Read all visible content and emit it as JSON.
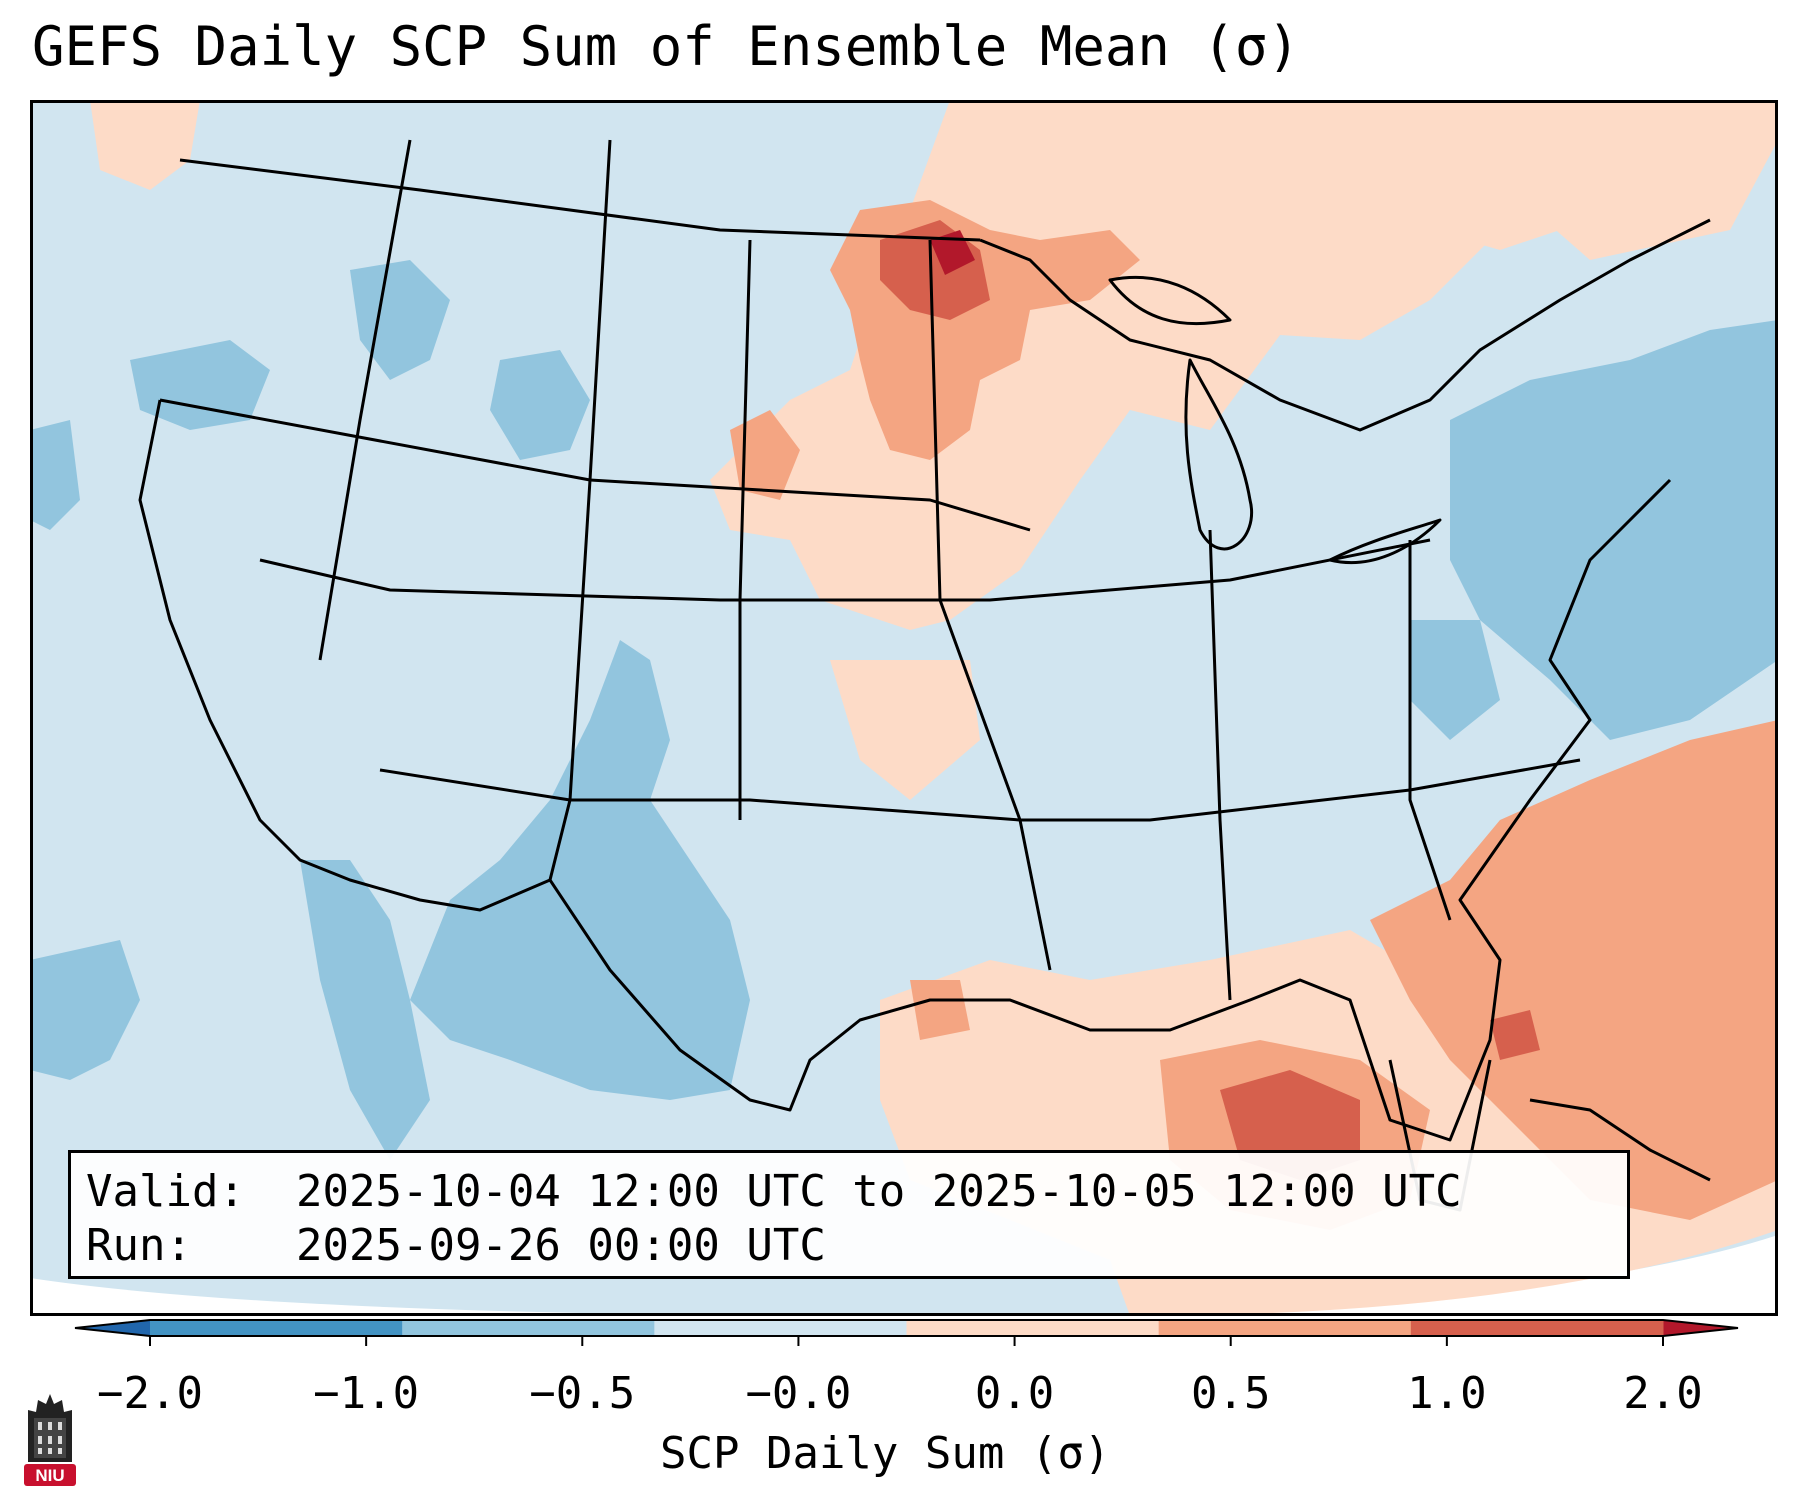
{
  "title": "GEFS Daily SCP Sum of Ensemble Mean (σ)",
  "info": {
    "valid_label": "Valid:",
    "valid_value": "2025-10-04 12:00 UTC to 2025-10-05 12:00 UTC",
    "run_label": "Run:",
    "run_value": "2025-09-26 00:00 UTC"
  },
  "colorbar": {
    "label": "SCP Daily Sum (σ)",
    "ticks": [
      "−2.0",
      "−1.0",
      "−0.5",
      "−0.0",
      "0.0",
      "0.5",
      "1.0",
      "2.0"
    ],
    "bins": [
      {
        "from": -2.0,
        "to": -1.0,
        "color": "#4393c3"
      },
      {
        "from": -1.0,
        "to": -0.5,
        "color": "#92c5de"
      },
      {
        "from": -0.5,
        "to": 0.0,
        "color": "#d1e5f0"
      },
      {
        "from": 0.0,
        "to": 0.5,
        "color": "#fddbc7"
      },
      {
        "from": 0.5,
        "to": 1.0,
        "color": "#f4a582"
      },
      {
        "from": 1.0,
        "to": 2.0,
        "color": "#d6604d"
      }
    ],
    "under_color": "#2166ac",
    "over_color": "#b2182b"
  },
  "logo": {
    "text": "NIU"
  },
  "map": {
    "background_color": "#d1e5f0",
    "region": "Contiguous United States, southern Canada, northern Mexico, Gulf of Mexico, western Atlantic",
    "anomaly_areas": [
      {
        "region": "Northern Minnesota / Manitoba border",
        "value_class": "1.0 to 2.0"
      },
      {
        "region": "Minnesota / eastern Dakotas / Ontario",
        "value_class": "0.5 to 1.0"
      },
      {
        "region": "Upper Midwest, Great Lakes, southern Canada",
        "value_class": "0.0 to 0.5"
      },
      {
        "region": "Gulf of Mexico coast and eastern Gulf",
        "value_class": "0.0 to 0.5"
      },
      {
        "region": "Gulf south of Florida / near Cuba",
        "value_class": "1.0 to 2.0"
      },
      {
        "region": "Western Atlantic southeast of Carolinas",
        "value_class": "0.5 to 1.0"
      },
      {
        "region": "Southwest US / northern Mexico / Rockies",
        "value_class": "-1.0 to -0.5"
      },
      {
        "region": "Mid-Atlantic offshore Atlantic",
        "value_class": "-1.0 to -0.5"
      },
      {
        "region": "Pacific Northwest",
        "value_class": "-1.0 to -0.5"
      }
    ]
  }
}
